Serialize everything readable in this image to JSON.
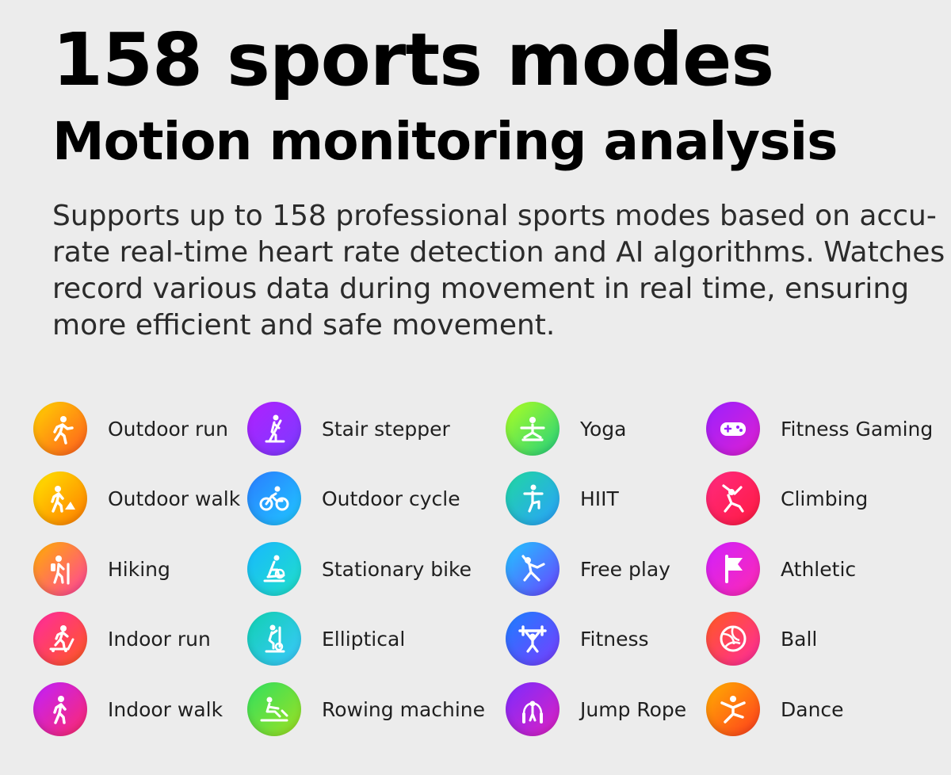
{
  "header": {
    "title": "158 sports modes",
    "subtitle": "Motion monitoring analysis",
    "description_lines": [
      "Supports up to 158 professional sports modes based on accu-",
      "rate real-time heart rate detection and AI algorithms. Watches",
      "record various data during movement in real time, ensuring",
      "more efficient and safe movement."
    ]
  },
  "modes": {
    "col1": [
      {
        "label": "Outdoor run",
        "icon": "outdoor-run-icon",
        "colors": [
          "#ffd400",
          "#ff5a1f"
        ]
      },
      {
        "label": "Outdoor walk",
        "icon": "outdoor-walk-icon",
        "colors": [
          "#ffe600",
          "#ff7a00"
        ]
      },
      {
        "label": "Hiking",
        "icon": "hiking-icon",
        "colors": [
          "#ffb000",
          "#ff3fa0"
        ]
      },
      {
        "label": "Indoor run",
        "icon": "indoor-run-icon",
        "colors": [
          "#ff2aa0",
          "#ff5a1f"
        ]
      },
      {
        "label": "Indoor walk",
        "icon": "indoor-walk-icon",
        "colors": [
          "#c020ff",
          "#ff2a6a"
        ]
      }
    ],
    "col2": [
      {
        "label": "Stair stepper",
        "icon": "stair-stepper-icon",
        "colors": [
          "#b020ff",
          "#7a3cff"
        ]
      },
      {
        "label": "Outdoor cycle",
        "icon": "outdoor-cycle-icon",
        "colors": [
          "#2a7cff",
          "#20c8ff"
        ]
      },
      {
        "label": "Stationary bike",
        "icon": "stationary-bike-icon",
        "colors": [
          "#18b8ff",
          "#20e0c8"
        ]
      },
      {
        "label": "Elliptical",
        "icon": "elliptical-icon",
        "colors": [
          "#10d0b0",
          "#3cc8ff"
        ]
      },
      {
        "label": "Rowing machine",
        "icon": "rowing-machine-icon",
        "colors": [
          "#30e060",
          "#a0e020"
        ]
      }
    ],
    "col3": [
      {
        "label": "Yoga",
        "icon": "yoga-icon",
        "colors": [
          "#b0ff20",
          "#20d080"
        ]
      },
      {
        "label": "HIIT",
        "icon": "hiit-icon",
        "colors": [
          "#20d8a0",
          "#2aa0ff"
        ]
      },
      {
        "label": "Free play",
        "icon": "free-play-icon",
        "colors": [
          "#20c8ff",
          "#6a40ff"
        ]
      },
      {
        "label": "Fitness",
        "icon": "fitness-icon",
        "colors": [
          "#1a80ff",
          "#7a3cff"
        ]
      },
      {
        "label": "Jump Rope",
        "icon": "jump-rope-icon",
        "colors": [
          "#7a2cff",
          "#e020c0"
        ]
      }
    ],
    "col4": [
      {
        "label": "Fitness Gaming",
        "icon": "game-controller-icon",
        "colors": [
          "#9a20ff",
          "#e020d0"
        ]
      },
      {
        "label": "Climbing",
        "icon": "climbing-icon",
        "colors": [
          "#ff2a80",
          "#ff1a40"
        ]
      },
      {
        "label": "Athletic",
        "icon": "athletic-flag-icon",
        "colors": [
          "#d020ff",
          "#ff2ab0"
        ]
      },
      {
        "label": "Ball",
        "icon": "volleyball-icon",
        "colors": [
          "#ff5a1f",
          "#ff2aa0"
        ]
      },
      {
        "label": "Dance",
        "icon": "dance-icon",
        "colors": [
          "#ffb000",
          "#ff3a1f"
        ]
      }
    ]
  }
}
